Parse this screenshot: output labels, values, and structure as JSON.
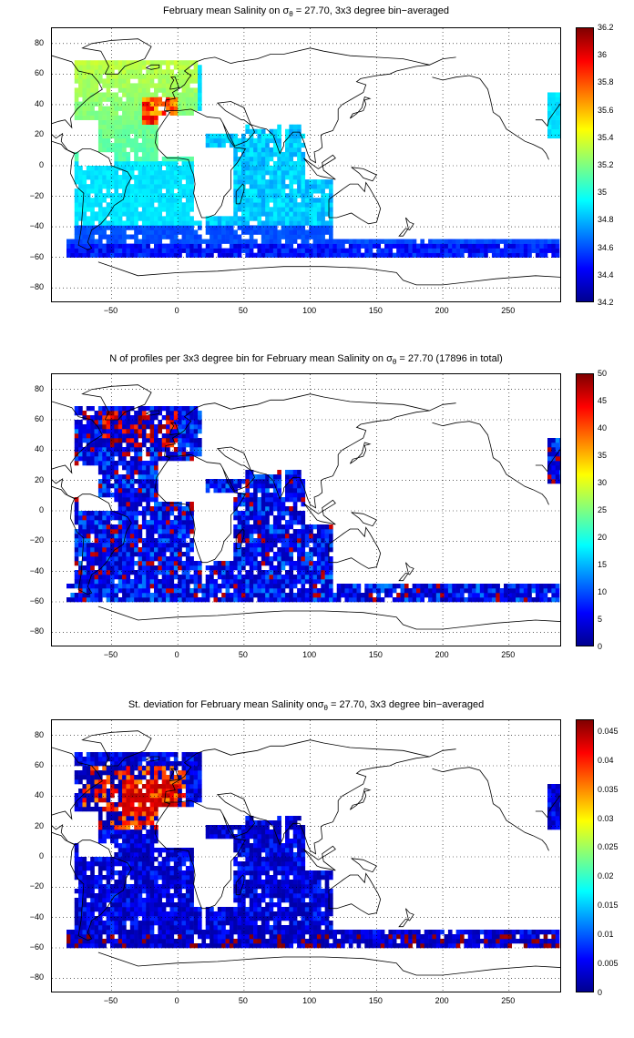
{
  "panels": [
    {
      "title_pre": "February mean Salinity on σ",
      "title_sub": "θ",
      "title_post": " = 27.70, 3x3 degree bin−averaged",
      "colorbar_ticks": [
        "36.2",
        "36",
        "35.8",
        "35.6",
        "35.4",
        "35.2",
        "35",
        "34.8",
        "34.6",
        "34.4",
        "34.2"
      ],
      "colorbar_range": [
        34.2,
        36.2
      ]
    },
    {
      "title_pre": "N of profiles per 3x3 degree bin for February mean Salinity on σ",
      "title_sub": "θ",
      "title_post": " = 27.70 (17896 in total)",
      "colorbar_ticks": [
        "50",
        "45",
        "40",
        "35",
        "30",
        "25",
        "20",
        "15",
        "10",
        "5",
        "0"
      ],
      "colorbar_range": [
        0,
        50
      ]
    },
    {
      "title_pre": "St. deviation for February mean Salinity onσ",
      "title_sub": "θ",
      "title_post": " = 27.70, 3x3 degree bin−averaged",
      "colorbar_ticks": [
        "0.045",
        "0.04",
        "0.035",
        "0.03",
        "0.025",
        "0.02",
        "0.015",
        "0.01",
        "0.005",
        "0"
      ],
      "colorbar_range": [
        0,
        0.047
      ]
    }
  ],
  "y_ticks": [
    "80",
    "60",
    "40",
    "20",
    "0",
    "−20",
    "−40",
    "−60",
    "−80"
  ],
  "x_ticks": [
    "−50",
    "0",
    "50",
    "100",
    "150",
    "200",
    "250"
  ],
  "axes": {
    "lon_range": [
      -95,
      290
    ],
    "lat_range": [
      -90,
      90
    ]
  },
  "colormap": "jet"
}
